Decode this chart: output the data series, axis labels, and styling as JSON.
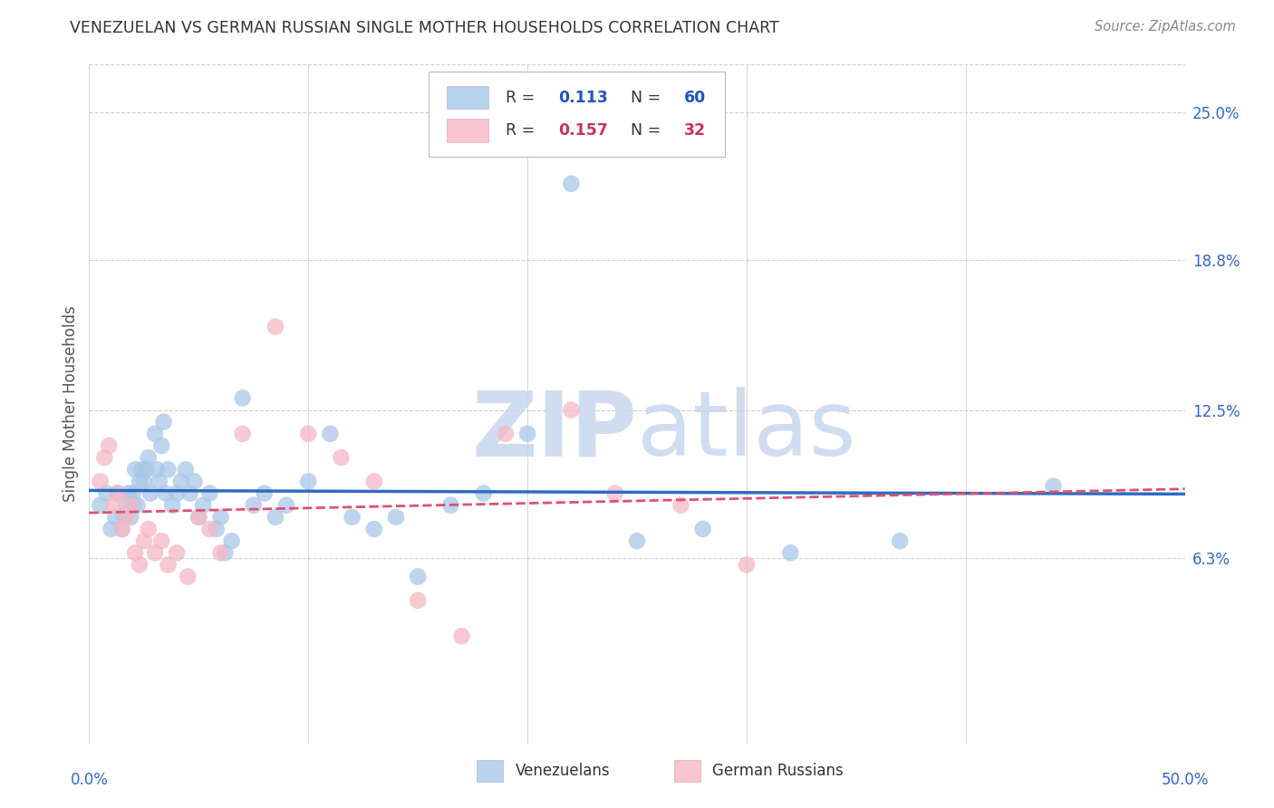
{
  "title": "VENEZUELAN VS GERMAN RUSSIAN SINGLE MOTHER HOUSEHOLDS CORRELATION CHART",
  "source": "Source: ZipAtlas.com",
  "ylabel": "Single Mother Households",
  "ytick_labels": [
    "6.3%",
    "12.5%",
    "18.8%",
    "25.0%"
  ],
  "ytick_values": [
    6.3,
    12.5,
    18.8,
    25.0
  ],
  "xlim": [
    0.0,
    50.0
  ],
  "ylim": [
    -1.5,
    27.0
  ],
  "background_color": "#ffffff",
  "grid_color": "#d0d0d0",
  "venezuelan_color": "#a8c8e8",
  "german_russian_color": "#f5b8c4",
  "venezuelan_R": 0.113,
  "venezuelan_N": 60,
  "german_russian_R": 0.157,
  "german_russian_N": 32,
  "venezuelan_line_color": "#2f6bbf",
  "german_russian_line_color": "#e05070",
  "venezuelan_x": [
    0.5,
    0.8,
    1.0,
    1.2,
    1.3,
    1.5,
    1.6,
    1.7,
    1.8,
    1.9,
    2.0,
    2.0,
    2.1,
    2.2,
    2.3,
    2.4,
    2.5,
    2.6,
    2.7,
    2.8,
    3.0,
    3.1,
    3.2,
    3.3,
    3.4,
    3.5,
    3.6,
    3.8,
    4.0,
    4.2,
    4.4,
    4.6,
    4.8,
    5.0,
    5.2,
    5.5,
    5.8,
    6.0,
    6.2,
    6.5,
    7.0,
    7.5,
    8.0,
    8.5,
    9.0,
    10.0,
    11.0,
    12.0,
    13.0,
    14.0,
    15.0,
    16.5,
    18.0,
    20.0,
    22.0,
    25.0,
    28.0,
    32.0,
    37.0,
    44.0
  ],
  "venezuelan_y": [
    8.5,
    9.0,
    7.5,
    8.0,
    9.0,
    7.5,
    8.0,
    8.5,
    9.0,
    8.0,
    8.5,
    9.0,
    10.0,
    8.5,
    9.5,
    10.0,
    9.5,
    10.0,
    10.5,
    9.0,
    11.5,
    10.0,
    9.5,
    11.0,
    12.0,
    9.0,
    10.0,
    8.5,
    9.0,
    9.5,
    10.0,
    9.0,
    9.5,
    8.0,
    8.5,
    9.0,
    7.5,
    8.0,
    6.5,
    7.0,
    13.0,
    8.5,
    9.0,
    8.0,
    8.5,
    9.5,
    11.5,
    8.0,
    7.5,
    8.0,
    5.5,
    8.5,
    9.0,
    11.5,
    22.0,
    7.0,
    7.5,
    6.5,
    7.0,
    9.3
  ],
  "german_russian_x": [
    0.5,
    0.7,
    0.9,
    1.1,
    1.3,
    1.5,
    1.7,
    1.9,
    2.1,
    2.3,
    2.5,
    2.7,
    3.0,
    3.3,
    3.6,
    4.0,
    4.5,
    5.0,
    5.5,
    6.0,
    7.0,
    8.5,
    10.0,
    11.5,
    13.0,
    15.0,
    17.0,
    19.0,
    22.0,
    24.0,
    27.0,
    30.0
  ],
  "german_russian_y": [
    9.5,
    10.5,
    11.0,
    8.5,
    9.0,
    7.5,
    8.0,
    8.5,
    6.5,
    6.0,
    7.0,
    7.5,
    6.5,
    7.0,
    6.0,
    6.5,
    5.5,
    8.0,
    7.5,
    6.5,
    11.5,
    16.0,
    11.5,
    10.5,
    9.5,
    4.5,
    3.0,
    11.5,
    12.5,
    9.0,
    8.5,
    6.0
  ]
}
